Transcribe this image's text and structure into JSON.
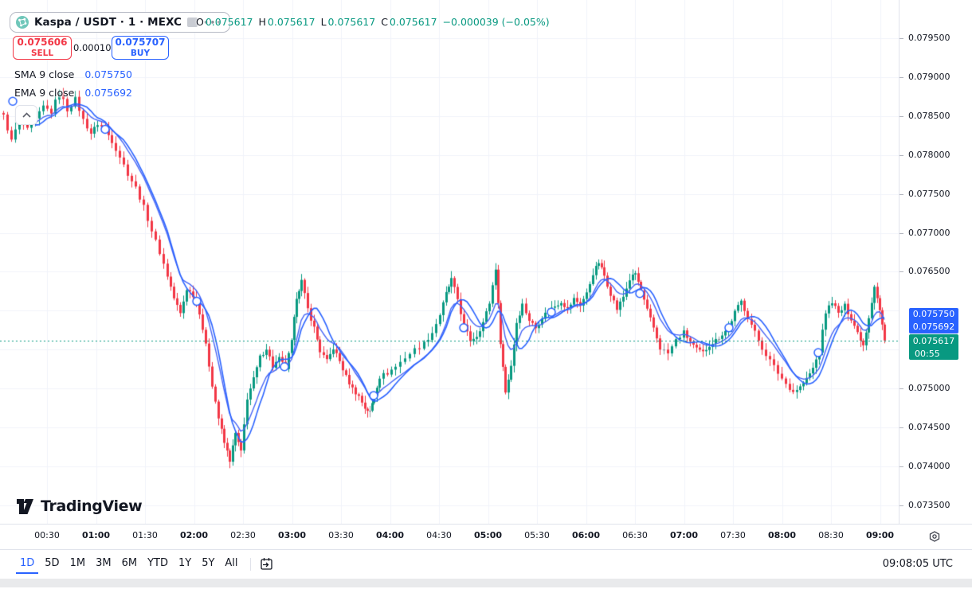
{
  "header": {
    "symbol_text": "Kaspa / USDT · 1 · MEXC",
    "more_label": "•••",
    "ohlc": {
      "o_label": "O",
      "o": "0.075617",
      "h_label": "H",
      "h": "0.075617",
      "l_label": "L",
      "l": "0.075617",
      "c_label": "C",
      "c": "0.075617",
      "change": "−0.000039 (−0.05%)"
    }
  },
  "trade_panel": {
    "sell_price": "0.075606",
    "sell_label": "SELL",
    "spread": "0.000101",
    "buy_price": "0.075707",
    "buy_label": "BUY"
  },
  "indicators": [
    {
      "label": "SMA 9 close",
      "value": "0.075750"
    },
    {
      "label": "EMA 9 close",
      "value": "0.075692"
    }
  ],
  "price_axis": {
    "labels": [
      {
        "text": "0.079500",
        "price": 0.0795
      },
      {
        "text": "0.079000",
        "price": 0.079
      },
      {
        "text": "0.078500",
        "price": 0.0785
      },
      {
        "text": "0.078000",
        "price": 0.078
      },
      {
        "text": "0.077500",
        "price": 0.0775
      },
      {
        "text": "0.077000",
        "price": 0.077
      },
      {
        "text": "0.076500",
        "price": 0.0765
      },
      {
        "text": "0.075000",
        "price": 0.075
      },
      {
        "text": "0.074500",
        "price": 0.0745
      },
      {
        "text": "0.074000",
        "price": 0.074
      },
      {
        "text": "0.073500",
        "price": 0.0735
      }
    ],
    "badges": {
      "sma": "0.075750",
      "ema": "0.075692",
      "last": "0.075617",
      "countdown": "00:55"
    }
  },
  "time_axis": {
    "labels": [
      "00:30",
      "01:00",
      "01:30",
      "02:00",
      "02:30",
      "03:00",
      "03:30",
      "04:00",
      "04:30",
      "05:00",
      "05:30",
      "06:00",
      "06:30",
      "07:00",
      "07:30",
      "08:00",
      "08:30",
      "09:00"
    ]
  },
  "toolbar": {
    "ranges": [
      "1D",
      "5D",
      "1M",
      "3M",
      "6M",
      "YTD",
      "1Y",
      "5Y",
      "All"
    ],
    "active": "1D",
    "clock": "09:08:05 UTC"
  },
  "logo": {
    "text": "TradingView"
  },
  "chart_data": {
    "type": "candlestick",
    "symbol": "Kaspa / USDT",
    "exchange": "MEXC",
    "interval": "1",
    "last_price": 0.075617,
    "open": 0.075617,
    "high": 0.075617,
    "low": 0.075617,
    "close": 0.075617,
    "change": -3.9e-05,
    "change_pct": -0.05,
    "sma9": 0.07575,
    "ema9": 0.075692,
    "y_axis": {
      "min": 0.0735,
      "max": 0.0795,
      "step": 0.0005
    },
    "x_axis": {
      "start": "00:10",
      "end": "09:05",
      "tick_interval_min": 30
    },
    "grid": true,
    "colors": {
      "up": "#089981",
      "down": "#f23645",
      "neutral": "#9598a1",
      "sma": "#2962ff",
      "ema": "#4664f5",
      "marker": "#2962ff",
      "grid": "#f0f3fa",
      "last_line": "#089981",
      "badge_blue": "#2962ff",
      "badge_green": "#089981"
    },
    "path": [
      [
        4,
        0.0785
      ],
      [
        14,
        0.07818
      ],
      [
        24,
        0.07846
      ],
      [
        34,
        0.07832
      ],
      [
        44,
        0.07845
      ],
      [
        54,
        0.07862
      ],
      [
        64,
        0.07855
      ],
      [
        74,
        0.07882
      ],
      [
        84,
        0.07858
      ],
      [
        94,
        0.07872
      ],
      [
        104,
        0.07845
      ],
      [
        114,
        0.07828
      ],
      [
        122,
        0.0784
      ],
      [
        132,
        0.07833
      ],
      [
        140,
        0.07818
      ],
      [
        150,
        0.07798
      ],
      [
        160,
        0.07776
      ],
      [
        170,
        0.07758
      ],
      [
        180,
        0.07733
      ],
      [
        190,
        0.07703
      ],
      [
        200,
        0.07675
      ],
      [
        210,
        0.07645
      ],
      [
        218,
        0.07616
      ],
      [
        226,
        0.07596
      ],
      [
        234,
        0.07628
      ],
      [
        242,
        0.0762
      ],
      [
        250,
        0.07598
      ],
      [
        258,
        0.07555
      ],
      [
        266,
        0.07505
      ],
      [
        274,
        0.07462
      ],
      [
        281,
        0.0743
      ],
      [
        288,
        0.07408
      ],
      [
        295,
        0.07442
      ],
      [
        302,
        0.07418
      ],
      [
        310,
        0.07488
      ],
      [
        318,
        0.07512
      ],
      [
        326,
        0.0754
      ],
      [
        334,
        0.07552
      ],
      [
        342,
        0.07528
      ],
      [
        350,
        0.07538
      ],
      [
        358,
        0.07526
      ],
      [
        366,
        0.0756
      ],
      [
        372,
        0.07618
      ],
      [
        378,
        0.07638
      ],
      [
        386,
        0.07602
      ],
      [
        394,
        0.07578
      ],
      [
        401,
        0.07548
      ],
      [
        410,
        0.07535
      ],
      [
        418,
        0.07552
      ],
      [
        426,
        0.07535
      ],
      [
        434,
        0.07515
      ],
      [
        442,
        0.075
      ],
      [
        450,
        0.0749
      ],
      [
        458,
        0.07475
      ],
      [
        464,
        0.0747
      ],
      [
        469,
        0.07492
      ],
      [
        476,
        0.07515
      ],
      [
        486,
        0.0752
      ],
      [
        496,
        0.07528
      ],
      [
        508,
        0.0754
      ],
      [
        520,
        0.0755
      ],
      [
        532,
        0.07558
      ],
      [
        542,
        0.07572
      ],
      [
        552,
        0.07595
      ],
      [
        560,
        0.07622
      ],
      [
        566,
        0.0764
      ],
      [
        574,
        0.07615
      ],
      [
        582,
        0.0758
      ],
      [
        590,
        0.07562
      ],
      [
        598,
        0.07568
      ],
      [
        606,
        0.07585
      ],
      [
        614,
        0.0761
      ],
      [
        622,
        0.07655
      ],
      [
        628,
        0.0756
      ],
      [
        634,
        0.07495
      ],
      [
        641,
        0.0753
      ],
      [
        648,
        0.07585
      ],
      [
        655,
        0.07608
      ],
      [
        664,
        0.07588
      ],
      [
        672,
        0.07578
      ],
      [
        680,
        0.07592
      ],
      [
        688,
        0.076
      ],
      [
        696,
        0.07606
      ],
      [
        704,
        0.07612
      ],
      [
        712,
        0.07602
      ],
      [
        720,
        0.07615
      ],
      [
        728,
        0.07608
      ],
      [
        736,
        0.07622
      ],
      [
        744,
        0.07648
      ],
      [
        751,
        0.07662
      ],
      [
        758,
        0.07645
      ],
      [
        766,
        0.07622
      ],
      [
        774,
        0.07602
      ],
      [
        782,
        0.07618
      ],
      [
        790,
        0.0764
      ],
      [
        797,
        0.07648
      ],
      [
        804,
        0.07625
      ],
      [
        812,
        0.076
      ],
      [
        820,
        0.07578
      ],
      [
        828,
        0.07552
      ],
      [
        838,
        0.07545
      ],
      [
        848,
        0.07562
      ],
      [
        858,
        0.07572
      ],
      [
        866,
        0.0756
      ],
      [
        874,
        0.0755
      ],
      [
        882,
        0.07546
      ],
      [
        890,
        0.07556
      ],
      [
        898,
        0.07562
      ],
      [
        906,
        0.0757
      ],
      [
        914,
        0.07578
      ],
      [
        922,
        0.07598
      ],
      [
        930,
        0.07612
      ],
      [
        938,
        0.07592
      ],
      [
        947,
        0.07572
      ],
      [
        956,
        0.07552
      ],
      [
        966,
        0.07536
      ],
      [
        976,
        0.0752
      ],
      [
        986,
        0.07506
      ],
      [
        995,
        0.07496
      ],
      [
        1004,
        0.07502
      ],
      [
        1012,
        0.07512
      ],
      [
        1020,
        0.07526
      ],
      [
        1028,
        0.07548
      ],
      [
        1036,
        0.07598
      ],
      [
        1044,
        0.07612
      ],
      [
        1052,
        0.07596
      ],
      [
        1060,
        0.07606
      ],
      [
        1068,
        0.0759
      ],
      [
        1076,
        0.07572
      ],
      [
        1083,
        0.07556
      ],
      [
        1090,
        0.07592
      ],
      [
        1097,
        0.07632
      ],
      [
        1104,
        0.076
      ],
      [
        1110,
        0.07562
      ]
    ],
    "markers": [
      [
        16,
        0.07869
      ],
      [
        132,
        0.07833
      ],
      [
        247,
        0.07612
      ],
      [
        357,
        0.07528
      ],
      [
        469,
        0.07491
      ],
      [
        582,
        0.07578
      ],
      [
        692,
        0.07598
      ],
      [
        803,
        0.07622
      ],
      [
        915,
        0.07578
      ],
      [
        1027,
        0.07546
      ]
    ]
  }
}
